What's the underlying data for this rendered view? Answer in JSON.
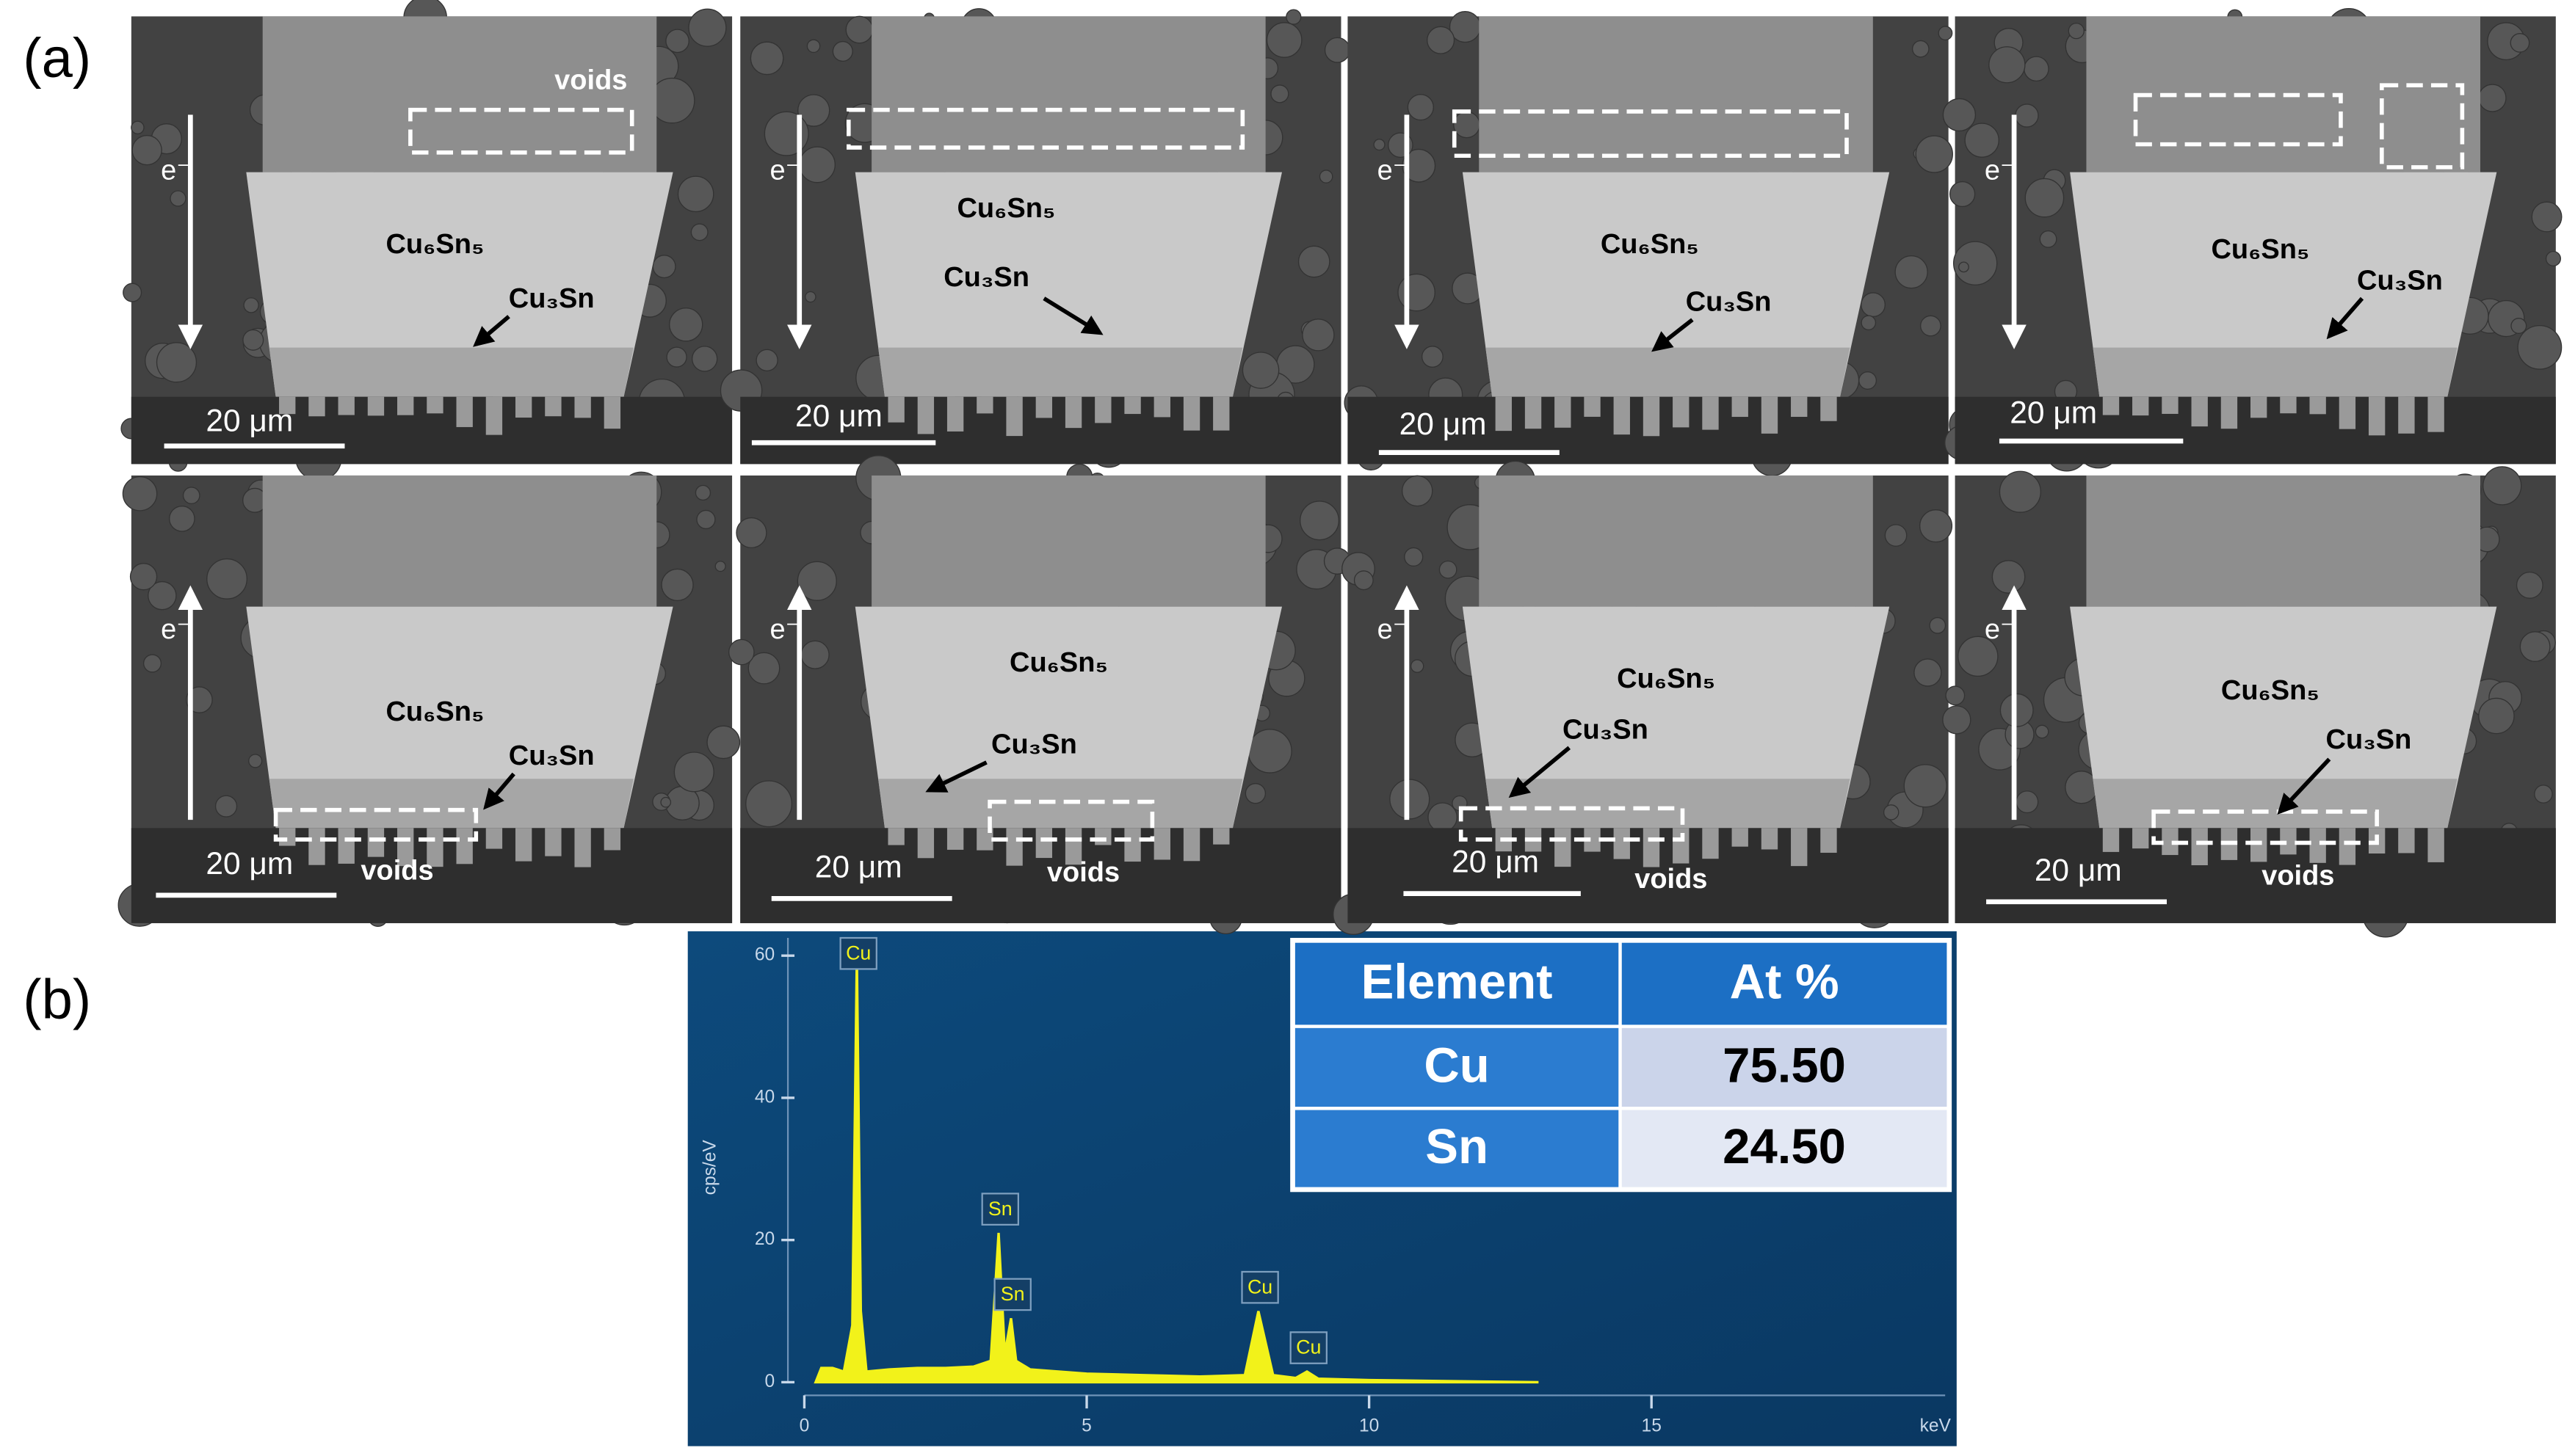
{
  "figure": {
    "panel_a": {
      "label": "(a)",
      "images": [
        {
          "electron": "e⁻",
          "cu6sn5": "Cu₆Sn₅",
          "cu3sn": "Cu₃Sn",
          "scale_bar": "20 μm",
          "voids": "voids"
        },
        {
          "electron": "e⁻",
          "cu6sn5": "Cu₆Sn₅",
          "cu3sn": "Cu₃Sn",
          "scale_bar": "20 μm"
        },
        {
          "electron": "e⁻",
          "cu6sn5": "Cu₆Sn₅",
          "cu3sn": "Cu₃Sn",
          "scale_bar": "20 μm"
        },
        {
          "electron": "e⁻",
          "cu6sn5": "Cu₆Sn₅",
          "cu3sn": "Cu₃Sn",
          "scale_bar": "20 μm"
        },
        {
          "electron": "e⁻",
          "cu6sn5": "Cu₆Sn₅",
          "cu3sn": "Cu₃Sn",
          "scale_bar": "20 μm",
          "voids": "voids"
        },
        {
          "electron": "e⁻",
          "cu6sn5": "Cu₆Sn₅",
          "cu3sn": "Cu₃Sn",
          "scale_bar": "20 μm",
          "voids": "voids"
        },
        {
          "electron": "e⁻",
          "cu6sn5": "Cu₆Sn₅",
          "cu3sn": "Cu₃Sn",
          "scale_bar": "20 μm",
          "voids": "voids"
        },
        {
          "electron": "e⁻",
          "cu6sn5": "Cu₆Sn₅",
          "cu3sn": "Cu₃Sn",
          "scale_bar": "20 μm",
          "voids": "voids"
        }
      ]
    },
    "panel_b": {
      "label": "(b)",
      "table": {
        "header": [
          "Element",
          "At %"
        ],
        "rows": [
          [
            "Cu",
            "75.50"
          ],
          [
            "Sn",
            "24.50"
          ]
        ]
      }
    }
  },
  "chart_data": {
    "type": "area",
    "x_label": "keV",
    "y_label": "cps/eV",
    "color": "#f2f21a",
    "x": [
      0.2,
      0.3,
      0.5,
      0.7,
      0.85,
      0.93,
      1.0,
      1.1,
      1.5,
      2,
      2.5,
      3,
      3.3,
      3.44,
      3.55,
      3.66,
      3.75,
      4,
      5,
      6,
      7,
      7.8,
      8.04,
      8.3,
      8.7,
      8.9,
      9.1,
      10,
      11,
      12,
      13
    ],
    "values": [
      0,
      2,
      2,
      1.5,
      8,
      60,
      10,
      1.5,
      1.8,
      2,
      2,
      2.2,
      3,
      21,
      4,
      9,
      3,
      1.8,
      1.2,
      1,
      0.8,
      1,
      10,
      1,
      0.6,
      1.5,
      0.5,
      0.3,
      0.2,
      0.1,
      0
    ],
    "xlim": [
      0,
      20.2
    ],
    "ylim": [
      0,
      62.5
    ],
    "xticks": [
      0,
      5,
      10,
      15
    ],
    "yticks": [
      0,
      20,
      40,
      60
    ],
    "annotations": [
      {
        "text": "Cu",
        "x": 0.93
      },
      {
        "text": "Sn",
        "x": 3.44
      },
      {
        "text": "Sn",
        "x": 3.66
      },
      {
        "text": "Cu",
        "x": 8.04
      },
      {
        "text": "Cu",
        "x": 8.9
      }
    ]
  }
}
